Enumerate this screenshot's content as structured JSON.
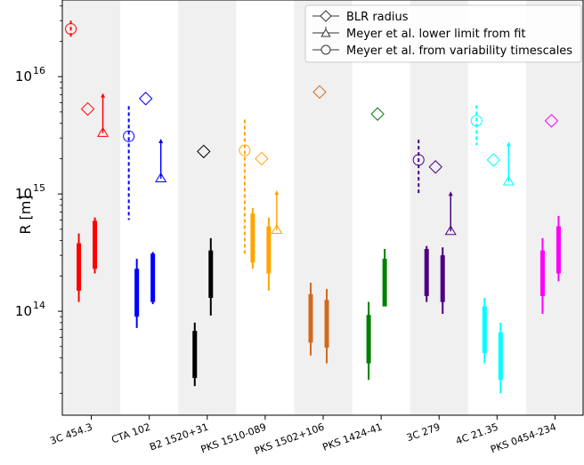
{
  "chart_data": {
    "type": "box",
    "ylabel": "R [m]",
    "yscale": "log",
    "ylim": [
      13000000000000,
      45000000000000000
    ],
    "y_ticks": [
      {
        "value": 100000000000000,
        "label": "10"
      },
      {
        "value": 1000000000000000,
        "label": "10"
      },
      {
        "value": 10000000000000000,
        "label": "10"
      }
    ],
    "y_tick_exponents": [
      "14",
      "15",
      "16"
    ],
    "categories": [
      "3C 454.3",
      "CTA 102",
      "B2 1520+31",
      "PKS 1510-089",
      "PKS 1502+106",
      "PKS 1424-41",
      "3C 279",
      "4C 21.35",
      "PKS 0454-234"
    ],
    "colors": [
      "#ff0000",
      "#0000ff",
      "#000000",
      "#ffa500",
      "#d2691e",
      "#008000",
      "#4b0082",
      "#00ffff",
      "#ff00ff"
    ],
    "shaded_bands": true,
    "legend": {
      "placement": "top-right",
      "entries": [
        "BLR radius",
        "Meyer et al. lower limit from fit",
        "Meyer et al. from variability timescales"
      ]
    },
    "boxes": [
      [
        {
          "whisker": [
            120000000000000.0,
            460000000000000.0
          ],
          "box": [
            150000000000000.0,
            380000000000000.0
          ]
        },
        {
          "whisker": [
            210000000000000.0,
            630000000000000.0
          ],
          "box": [
            230000000000000.0,
            590000000000000.0
          ]
        }
      ],
      [
        {
          "whisker": [
            72000000000000.0,
            280000000000000.0
          ],
          "box": [
            90000000000000.0,
            230000000000000.0
          ]
        },
        {
          "whisker": [
            115000000000000.0,
            320000000000000.0
          ],
          "box": [
            120000000000000.0,
            310000000000000.0
          ]
        }
      ],
      [
        {
          "whisker": [
            23000000000000.0,
            80000000000000.0
          ],
          "box": [
            27000000000000.0,
            68000000000000.0
          ]
        },
        {
          "whisker": [
            92000000000000.0,
            420000000000000.0
          ],
          "box": [
            130000000000000.0,
            330000000000000.0
          ]
        }
      ],
      [
        {
          "whisker": [
            230000000000000.0,
            760000000000000.0
          ],
          "box": [
            260000000000000.0,
            680000000000000.0
          ]
        },
        {
          "whisker": [
            150000000000000.0,
            630000000000000.0
          ],
          "box": [
            210000000000000.0,
            530000000000000.0
          ]
        }
      ],
      [
        {
          "whisker": [
            42000000000000.0,
            175000000000000.0
          ],
          "box": [
            54000000000000.0,
            140000000000000.0
          ]
        },
        {
          "whisker": [
            36000000000000.0,
            155000000000000.0
          ],
          "box": [
            49000000000000.0,
            125000000000000.0
          ]
        }
      ],
      [
        {
          "whisker": [
            26000000000000.0,
            120000000000000.0
          ],
          "box": [
            36000000000000.0,
            93000000000000.0
          ]
        },
        {
          "whisker": [
            120000000000000.0,
            340000000000000.0
          ],
          "box": [
            110000000000000.0,
            280000000000000.0
          ]
        }
      ],
      [
        {
          "whisker": [
            120000000000000.0,
            360000000000000.0
          ],
          "box": [
            135000000000000.0,
            340000000000000.0
          ]
        },
        {
          "whisker": [
            95000000000000.0,
            350000000000000.0
          ],
          "box": [
            120000000000000.0,
            300000000000000.0
          ]
        }
      ],
      [
        {
          "whisker": [
            36000000000000.0,
            130000000000000.0
          ],
          "box": [
            44000000000000.0,
            110000000000000.0
          ]
        },
        {
          "whisker": [
            20000000000000.0,
            80000000000000.0
          ],
          "box": [
            26000000000000.0,
            66000000000000.0
          ]
        }
      ],
      [
        {
          "whisker": [
            95000000000000.0,
            420000000000000.0
          ],
          "box": [
            135000000000000.0,
            330000000000000.0
          ]
        },
        {
          "whisker": [
            180000000000000.0,
            650000000000000.0
          ],
          "box": [
            210000000000000.0,
            530000000000000.0
          ]
        }
      ]
    ],
    "blr_radius": [
      5300000000000000.0,
      6500000000000000.0,
      2300000000000000.0,
      2000000000000000.0,
      7400000000000000.0,
      4800000000000000.0,
      1700000000000000.0,
      1950000000000000.0,
      4200000000000000.0
    ],
    "lower_limit_fit": [
      3300000000000000.0,
      1350000000000000.0,
      null,
      490000000000000.0,
      null,
      null,
      480000000000000.0,
      1270000000000000.0,
      null
    ],
    "variability": [
      {
        "value": 2.55e+16,
        "range": [
          2.1e+16,
          3e+16
        ]
      },
      {
        "value": 3100000000000000.0,
        "range": [
          600000000000000.0,
          5600000000000000.0
        ]
      },
      null,
      {
        "value": 2350000000000000.0,
        "range": [
          300000000000000.0,
          4300000000000000.0
        ]
      },
      null,
      null,
      {
        "value": 1950000000000000.0,
        "range": [
          1000000000000000.0,
          2900000000000000.0
        ]
      },
      {
        "value": 4200000000000000.0,
        "range": [
          2600000000000000.0,
          5700000000000000.0
        ]
      },
      null
    ]
  }
}
